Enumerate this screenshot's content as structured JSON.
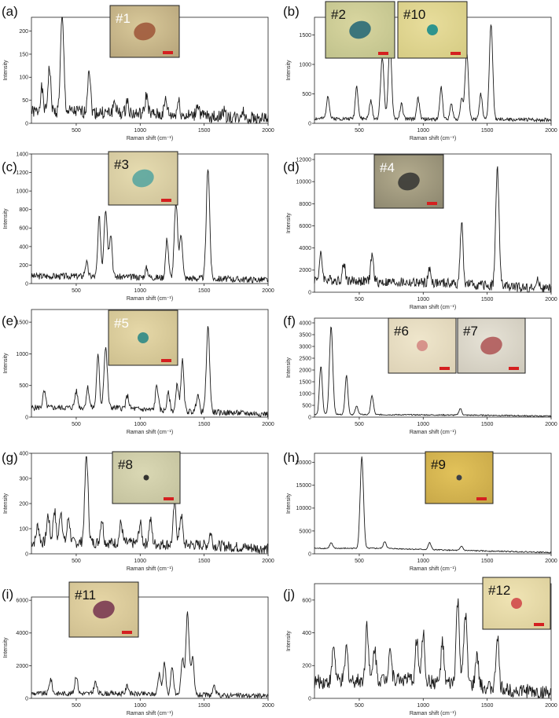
{
  "colors": {
    "line": "#1a1a1a",
    "scalebar": "#d42020",
    "inset_border": "#222222"
  },
  "chart_data": [
    {
      "panel": "(a)",
      "type": "line",
      "xlabel": "Raman shift (cm⁻¹)",
      "ylabel": "Intensity",
      "xlim": [
        150,
        2000
      ],
      "ylim": [
        0,
        230
      ],
      "xticks": [
        500,
        1000,
        1500,
        2000
      ],
      "yticks": [
        0,
        50,
        100,
        150,
        200
      ],
      "peaks": [
        [
          230,
          50
        ],
        [
          290,
          95
        ],
        [
          390,
          205
        ],
        [
          600,
          98
        ],
        [
          800,
          25
        ],
        [
          900,
          28
        ],
        [
          1050,
          42
        ],
        [
          1200,
          32
        ],
        [
          1300,
          30
        ],
        [
          1450,
          28
        ],
        [
          1650,
          15
        ],
        [
          1800,
          15
        ]
      ],
      "baseline": [
        [
          150,
          25
        ],
        [
          500,
          25
        ],
        [
          1000,
          20
        ],
        [
          1500,
          15
        ],
        [
          2000,
          10
        ]
      ],
      "noise": 14,
      "seed": 1,
      "insets": [
        {
          "label": "#1",
          "bg": [
            "#d9c99a",
            "#b8a67c"
          ],
          "blob": "#a05a3c",
          "blob_size": "large",
          "label_color": "#ffffff"
        }
      ]
    },
    {
      "panel": "(b)",
      "type": "line",
      "xlabel": "Raman shift (cm⁻¹)",
      "ylabel": "Intensity",
      "xlim": [
        150,
        2000
      ],
      "ylim": [
        0,
        1800
      ],
      "xticks": [
        500,
        1000,
        1500,
        2000
      ],
      "yticks": [
        0,
        500,
        1000,
        1500
      ],
      "peaks": [
        [
          255,
          400
        ],
        [
          480,
          550
        ],
        [
          590,
          300
        ],
        [
          680,
          1050
        ],
        [
          740,
          1250
        ],
        [
          830,
          250
        ],
        [
          960,
          350
        ],
        [
          1140,
          550
        ],
        [
          1220,
          250
        ],
        [
          1300,
          350
        ],
        [
          1340,
          1140
        ],
        [
          1450,
          430
        ],
        [
          1530,
          1630
        ]
      ],
      "baseline": [
        [
          150,
          80
        ],
        [
          700,
          80
        ],
        [
          1000,
          70
        ],
        [
          2000,
          60
        ]
      ],
      "noise": 30,
      "seed": 2,
      "insets": [
        {
          "label": "#2",
          "bg": [
            "#d9d6a0",
            "#c0c28c"
          ],
          "blob": "#2a6a78",
          "blob_size": "large",
          "label_color": "#111111"
        },
        {
          "label": "#10",
          "bg": [
            "#e8dd9c",
            "#d6cc84"
          ],
          "blob": "#1a8c8c",
          "blob_size": "small",
          "label_color": "#111111"
        }
      ]
    },
    {
      "panel": "(c)",
      "type": "line",
      "xlabel": "Raman shift (cm⁻¹)",
      "ylabel": "Intensity",
      "xlim": [
        150,
        2000
      ],
      "ylim": [
        0,
        1400
      ],
      "xticks": [
        500,
        1000,
        1500,
        2000
      ],
      "yticks": [
        0,
        200,
        400,
        600,
        800,
        1000,
        1200,
        1400
      ],
      "peaks": [
        [
          580,
          150
        ],
        [
          680,
          640
        ],
        [
          730,
          740
        ],
        [
          770,
          470
        ],
        [
          1050,
          100
        ],
        [
          1210,
          420
        ],
        [
          1280,
          810
        ],
        [
          1320,
          480
        ],
        [
          1530,
          1210
        ]
      ],
      "baseline": [
        [
          150,
          80
        ],
        [
          500,
          80
        ],
        [
          1000,
          70
        ],
        [
          2000,
          40
        ]
      ],
      "noise": 35,
      "seed": 3,
      "insets": [
        {
          "label": "#3",
          "bg": [
            "#e6dcb0",
            "#cfc39a"
          ],
          "blob": "#5aa6a0",
          "blob_size": "large",
          "label_color": "#111111"
        }
      ]
    },
    {
      "panel": "(d)",
      "type": "line",
      "xlabel": "Raman shift (cm⁻¹)",
      "ylabel": "Intensity",
      "xlim": [
        150,
        2000
      ],
      "ylim": [
        0,
        12500
      ],
      "xticks": [
        500,
        1000,
        1500,
        2000
      ],
      "yticks": [
        0,
        2000,
        4000,
        6000,
        8000,
        10000,
        12000
      ],
      "peaks": [
        [
          200,
          2200
        ],
        [
          380,
          1500
        ],
        [
          600,
          2400
        ],
        [
          1050,
          1200
        ],
        [
          1300,
          5500
        ],
        [
          1580,
          10600
        ],
        [
          1900,
          700
        ]
      ],
      "baseline": [
        [
          150,
          1200
        ],
        [
          700,
          900
        ],
        [
          1200,
          800
        ],
        [
          2000,
          300
        ]
      ],
      "noise": 450,
      "seed": 4,
      "insets": [
        {
          "label": "#4",
          "bg": [
            "#b4ac8e",
            "#8e8870"
          ],
          "blob": "#3a3a36",
          "blob_size": "large",
          "label_color": "#ffffff"
        }
      ]
    },
    {
      "panel": "(e)",
      "type": "line",
      "xlabel": "Raman shift (cm⁻¹)",
      "ylabel": "Intensity",
      "xlim": [
        150,
        2000
      ],
      "ylim": [
        0,
        1700
      ],
      "xticks": [
        500,
        1000,
        1500,
        2000
      ],
      "yticks": [
        0,
        500,
        1000,
        1500
      ],
      "peaks": [
        [
          250,
          250
        ],
        [
          500,
          260
        ],
        [
          590,
          320
        ],
        [
          670,
          820
        ],
        [
          730,
          950
        ],
        [
          900,
          200
        ],
        [
          1130,
          400
        ],
        [
          1220,
          280
        ],
        [
          1290,
          420
        ],
        [
          1330,
          800
        ],
        [
          1450,
          280
        ],
        [
          1530,
          1340
        ]
      ],
      "baseline": [
        [
          150,
          150
        ],
        [
          800,
          150
        ],
        [
          1200,
          100
        ],
        [
          2000,
          50
        ]
      ],
      "noise": 45,
      "seed": 5,
      "insets": [
        {
          "label": "#5",
          "bg": [
            "#e6d8a8",
            "#cdbf8e"
          ],
          "blob": "#2f8a86",
          "blob_size": "small",
          "label_color": "#ffffff"
        }
      ]
    },
    {
      "panel": "(f)",
      "type": "line",
      "xlabel": "Raman shift (cm⁻¹)",
      "ylabel": "Intensity",
      "xlim": [
        150,
        2000
      ],
      "ylim": [
        0,
        4200
      ],
      "xticks": [
        500,
        1000,
        1500,
        2000
      ],
      "yticks": [
        0,
        500,
        1000,
        1500,
        2000,
        2500,
        3000,
        3500,
        4000
      ],
      "peaks": [
        [
          200,
          2050
        ],
        [
          280,
          3750
        ],
        [
          400,
          1650
        ],
        [
          480,
          350
        ],
        [
          600,
          800
        ],
        [
          1290,
          280
        ]
      ],
      "baseline": [
        [
          150,
          120
        ],
        [
          800,
          100
        ],
        [
          1500,
          80
        ],
        [
          2000,
          40
        ]
      ],
      "noise": 25,
      "seed": 6,
      "insets": [
        {
          "label": "#6",
          "bg": [
            "#efe6cc",
            "#ddd2b6"
          ],
          "blob": "#d48a84",
          "blob_size": "small",
          "label_color": "#111111"
        },
        {
          "label": "#7",
          "bg": [
            "#e6e2d6",
            "#cfcabc"
          ],
          "blob": "#b05a5a",
          "blob_size": "large",
          "label_color": "#111111"
        }
      ]
    },
    {
      "panel": "(g)",
      "type": "line",
      "xlabel": "Raman shift (cm⁻¹)",
      "ylabel": "Intensity",
      "xlim": [
        150,
        2000
      ],
      "ylim": [
        0,
        400
      ],
      "xticks": [
        500,
        1000,
        1500,
        2000
      ],
      "yticks": [
        0,
        100,
        200,
        300,
        400
      ],
      "peaks": [
        [
          200,
          70
        ],
        [
          280,
          110
        ],
        [
          330,
          130
        ],
        [
          380,
          128
        ],
        [
          440,
          100
        ],
        [
          580,
          345
        ],
        [
          700,
          95
        ],
        [
          850,
          80
        ],
        [
          1000,
          80
        ],
        [
          1080,
          95
        ],
        [
          1270,
          170
        ],
        [
          1320,
          120
        ],
        [
          1550,
          50
        ]
      ],
      "baseline": [
        [
          150,
          45
        ],
        [
          700,
          45
        ],
        [
          1500,
          35
        ],
        [
          2000,
          20
        ]
      ],
      "noise": 22,
      "seed": 7,
      "insets": [
        {
          "label": "#8",
          "bg": [
            "#dad8b4",
            "#c4c29e"
          ],
          "blob": "#222222",
          "blob_size": "dot",
          "label_color": "#111111"
        }
      ]
    },
    {
      "panel": "(h)",
      "type": "line",
      "xlabel": "Raman shift (cm⁻¹)",
      "ylabel": "Intensity",
      "xlim": [
        150,
        2000
      ],
      "ylim": [
        0,
        22000
      ],
      "xticks": [
        500,
        1000,
        1500,
        2000
      ],
      "yticks": [
        0,
        5000,
        10000,
        15000,
        20000
      ],
      "peaks": [
        [
          280,
          1200
        ],
        [
          520,
          20000
        ],
        [
          700,
          1500
        ],
        [
          1050,
          1500
        ],
        [
          1300,
          900
        ]
      ],
      "baseline": [
        [
          150,
          1200
        ],
        [
          700,
          1200
        ],
        [
          1200,
          800
        ],
        [
          2000,
          300
        ]
      ],
      "noise": 120,
      "seed": 8,
      "insets": [
        {
          "label": "#9",
          "bg": [
            "#e2c25a",
            "#c8a848"
          ],
          "blob": "#2a3248",
          "blob_size": "dot",
          "label_color": "#111111"
        }
      ]
    },
    {
      "panel": "(i)",
      "type": "line",
      "xlabel": "Raman shift (cm⁻¹)",
      "ylabel": "Intensity",
      "xlim": [
        150,
        2000
      ],
      "ylim": [
        0,
        6200
      ],
      "xticks": [
        500,
        1000,
        1500,
        2000
      ],
      "yticks": [
        0,
        2000,
        4000,
        6000
      ],
      "peaks": [
        [
          300,
          900
        ],
        [
          500,
          1100
        ],
        [
          650,
          700
        ],
        [
          900,
          500
        ],
        [
          1150,
          1300
        ],
        [
          1190,
          1900
        ],
        [
          1250,
          1600
        ],
        [
          1330,
          2200
        ],
        [
          1370,
          5050
        ],
        [
          1410,
          2200
        ],
        [
          1580,
          500
        ]
      ],
      "baseline": [
        [
          150,
          300
        ],
        [
          800,
          300
        ],
        [
          1500,
          200
        ],
        [
          2000,
          150
        ]
      ],
      "noise": 150,
      "seed": 9,
      "insets": [
        {
          "label": "#11",
          "bg": [
            "#e6d6a6",
            "#cfbf90"
          ],
          "blob": "#7a3a52",
          "blob_size": "large",
          "label_color": "#111111"
        }
      ]
    },
    {
      "panel": "(j)",
      "type": "line",
      "xlabel": "Raman shift (cm⁻¹)",
      "ylabel": "Intensity",
      "xlim": [
        150,
        2000
      ],
      "ylim": [
        0,
        700
      ],
      "xticks": [
        500,
        1000,
        1500,
        2000
      ],
      "yticks": [
        0,
        200,
        400,
        600
      ],
      "peaks": [
        [
          300,
          220
        ],
        [
          400,
          200
        ],
        [
          560,
          350
        ],
        [
          620,
          200
        ],
        [
          740,
          200
        ],
        [
          950,
          260
        ],
        [
          1000,
          300
        ],
        [
          1150,
          250
        ],
        [
          1270,
          500
        ],
        [
          1330,
          430
        ],
        [
          1420,
          200
        ],
        [
          1580,
          330
        ]
      ],
      "baseline": [
        [
          150,
          100
        ],
        [
          800,
          120
        ],
        [
          1600,
          60
        ],
        [
          2000,
          30
        ]
      ],
      "noise": 45,
      "seed": 10,
      "insets": [
        {
          "label": "#12",
          "bg": [
            "#f0e4b4",
            "#dccf9c"
          ],
          "blob": "#d04a4a",
          "blob_size": "small",
          "label_color": "#111111"
        }
      ]
    }
  ]
}
